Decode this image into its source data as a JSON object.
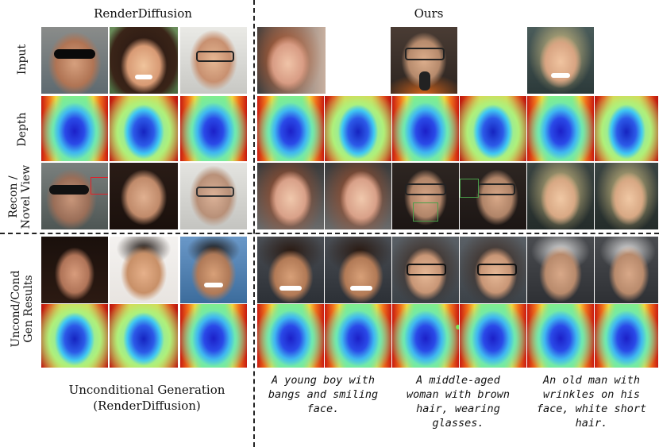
{
  "headers": {
    "left": "RenderDiffusion",
    "right": "Ours"
  },
  "row_labels": {
    "input": "Input",
    "depth": "Depth",
    "recon_line1": "Recon /",
    "recon_line2": "Novel View",
    "gen_line1": "Uncond/Cond",
    "gen_line2": "Gen Results"
  },
  "bottom_left": {
    "line1": "Unconditional Generation",
    "line2": "(RenderDiffusion)"
  },
  "captions": [
    {
      "line1": "A young boy with",
      "line2": "bangs and smiling",
      "line3": "face."
    },
    {
      "line1": "A middle-aged",
      "line2": "woman with brown",
      "line3": "hair, wearing",
      "line4": "glasses."
    },
    {
      "line1": "An old man with",
      "line2": "wrinkles on his",
      "line3": "face, white short",
      "line4": "hair."
    }
  ],
  "colors": {
    "divider": "#222222",
    "highlight_red": "#e0202a",
    "highlight_green": "#4aa04a"
  }
}
